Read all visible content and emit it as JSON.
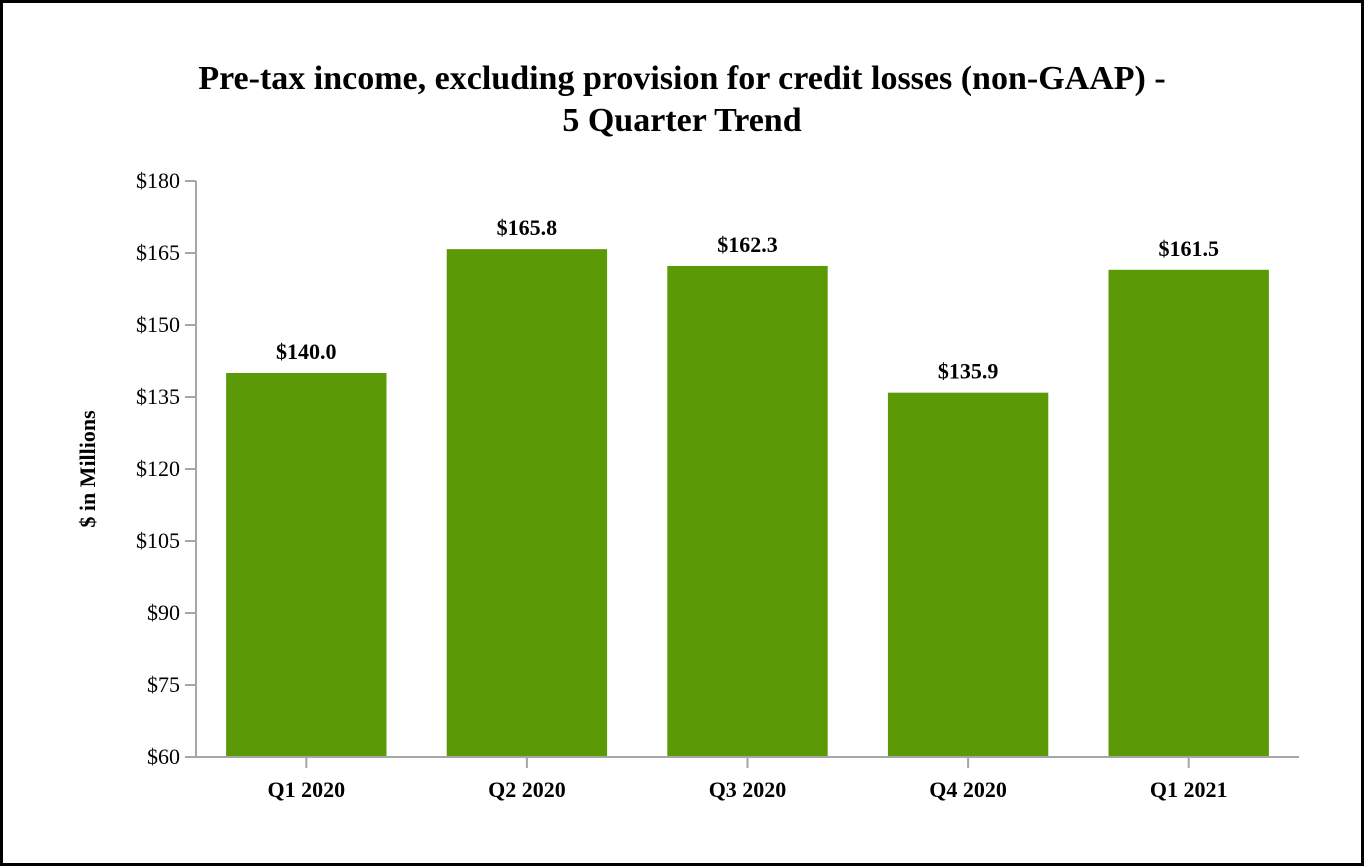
{
  "chart_data": {
    "type": "bar",
    "title_line1": "Pre-tax income, excluding provision for credit losses (non-GAAP) -",
    "title_line2": "5 Quarter Trend",
    "xlabel": "",
    "ylabel": "$ in Millions",
    "categories": [
      "Q1 2020",
      "Q2 2020",
      "Q3 2020",
      "Q4 2020",
      "Q1 2021"
    ],
    "values": [
      140.0,
      165.8,
      162.3,
      135.9,
      161.5
    ],
    "data_labels": [
      "$140.0",
      "$165.8",
      "$162.3",
      "$135.9",
      "$161.5"
    ],
    "ylim": [
      60,
      180
    ],
    "yticks": [
      60,
      75,
      90,
      105,
      120,
      135,
      150,
      165,
      180
    ],
    "ytick_labels": [
      "$60",
      "$75",
      "$90",
      "$105",
      "$120",
      "$135",
      "$150",
      "$165",
      "$180"
    ],
    "grid": false,
    "legend": "none",
    "bar_color": "#5b9907",
    "axis_color": "#a6a6a6"
  }
}
